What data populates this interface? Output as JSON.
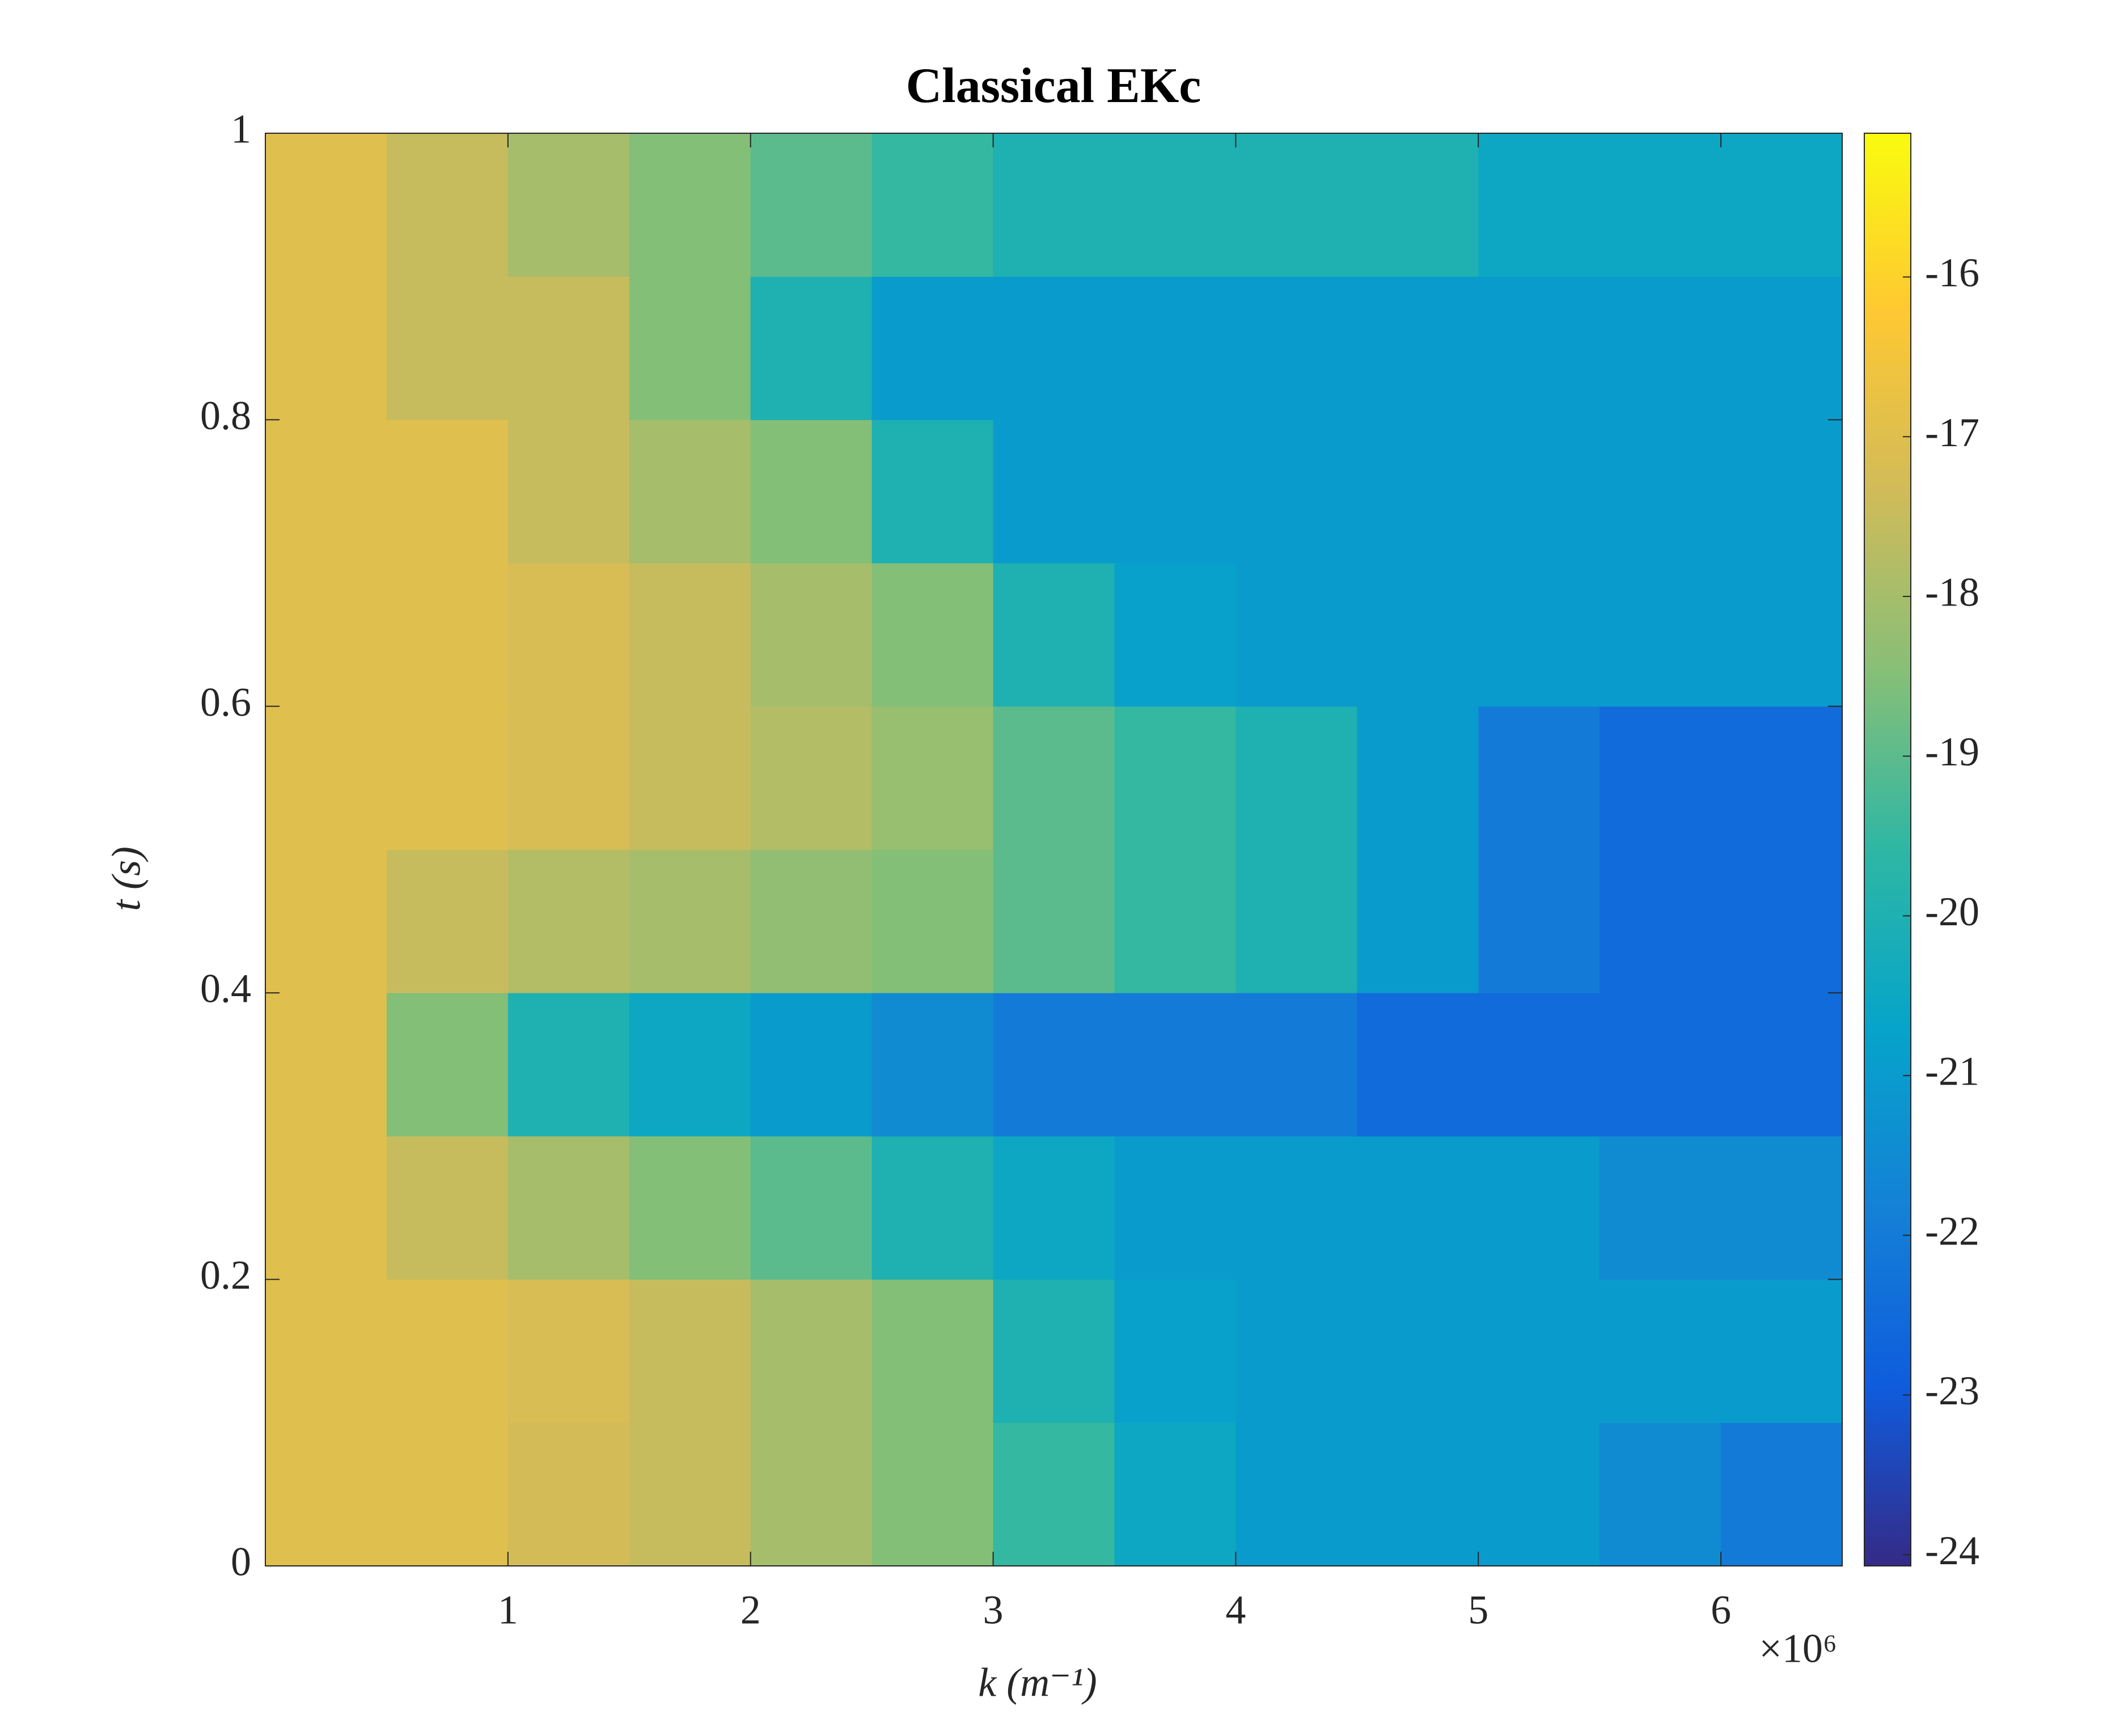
{
  "chart_data": {
    "type": "heatmap",
    "title": "Classical EKc",
    "x_label": "k (m⁻¹)",
    "y_label": "t (s)",
    "x_multiplier": "×10⁶",
    "x": [
      250000,
      750000,
      1250000,
      1750000,
      2250000,
      2750000,
      3250000,
      3750000,
      4250000,
      4750000,
      5250000,
      5750000,
      6250000
    ],
    "y": [
      0.05,
      0.15,
      0.25,
      0.35,
      0.45,
      0.55,
      0.65,
      0.75,
      0.85,
      0.95
    ],
    "z": [
      [
        -17,
        -17,
        -17.3,
        -17.5,
        -18,
        -18.5,
        -19.5,
        -20.5,
        -21,
        -21,
        -21,
        -21.5,
        -22
      ],
      [
        -17,
        -17,
        -17.2,
        -17.5,
        -18,
        -18.5,
        -20,
        -20.8,
        -21,
        -21,
        -21,
        -21,
        -21
      ],
      [
        -17,
        -17.5,
        -18,
        -18.5,
        -19,
        -20,
        -20.5,
        -21,
        -21,
        -21,
        -21,
        -21.5,
        -21.5
      ],
      [
        -17,
        -18.5,
        -20,
        -20.5,
        -21,
        -21.5,
        -22,
        -22,
        -22,
        -22.5,
        -22.5,
        -22.5,
        -22.5
      ],
      [
        -17,
        -17.5,
        -17.8,
        -18,
        -18.3,
        -18.5,
        -19,
        -19.5,
        -20,
        -21,
        -22,
        -22.5,
        -22.5
      ],
      [
        -17,
        -17,
        -17.2,
        -17.5,
        -17.8,
        -18.2,
        -19,
        -19.5,
        -20,
        -21,
        -22,
        -22.5,
        -22.5
      ],
      [
        -17,
        -17,
        -17.2,
        -17.5,
        -18,
        -18.5,
        -20,
        -20.8,
        -21,
        -21,
        -21,
        -21,
        -21
      ],
      [
        -17,
        -17,
        -17.5,
        -18,
        -18.5,
        -20,
        -21,
        -21,
        -21,
        -21,
        -21,
        -21,
        -21
      ],
      [
        -17,
        -17.5,
        -17.5,
        -18.5,
        -20,
        -21,
        -21,
        -21,
        -21,
        -21,
        -21,
        -21,
        -21
      ],
      [
        -17,
        -17.5,
        -18,
        -18.5,
        -19,
        -19.5,
        -20,
        -20,
        -20,
        -20,
        -20.5,
        -20.5,
        -20.5
      ]
    ],
    "xlim": [
      0,
      6500000
    ],
    "xticks": [
      {
        "value": 1000000,
        "label": "1"
      },
      {
        "value": 2000000,
        "label": "2"
      },
      {
        "value": 3000000,
        "label": "3"
      },
      {
        "value": 4000000,
        "label": "4"
      },
      {
        "value": 5000000,
        "label": "5"
      },
      {
        "value": 6000000,
        "label": "6"
      }
    ],
    "ylim": [
      0,
      1
    ],
    "yticks": [
      0,
      0.2,
      0.4,
      0.6,
      0.8,
      1
    ],
    "clim": [
      -24.07,
      -15.1
    ],
    "cticks": [
      -16,
      -17,
      -18,
      -19,
      -20,
      -21,
      -22,
      -23,
      -24
    ],
    "colormap": [
      "#352a87",
      "#0f5cdd",
      "#1481d6",
      "#06a4ca",
      "#2eb7a4",
      "#87bf77",
      "#d1bb59",
      "#fec832",
      "#f9fb0e"
    ]
  }
}
